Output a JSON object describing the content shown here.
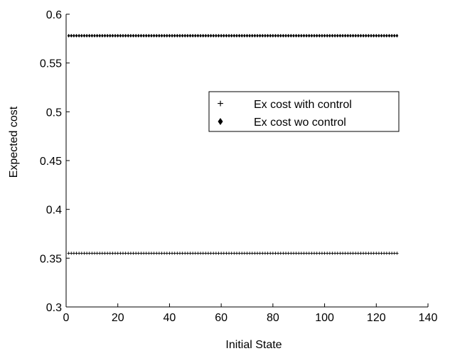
{
  "chart_data": {
    "type": "scatter",
    "xlabel": "Initial State",
    "ylabel": "Expected cost",
    "xlim": [
      0,
      140
    ],
    "ylim": [
      0.3,
      0.6
    ],
    "xticks": [
      0,
      20,
      40,
      60,
      80,
      100,
      120,
      140
    ],
    "xtick_labels": [
      "0",
      "20",
      "40",
      "60",
      "80",
      "100",
      "120",
      "140"
    ],
    "yticks": [
      0.3,
      0.35,
      0.4,
      0.45,
      0.5,
      0.55,
      0.6
    ],
    "ytick_labels": [
      "0.3",
      "0.35",
      "0.4",
      "0.45",
      "0.5",
      "0.55",
      "0.6"
    ],
    "grid": false,
    "legend_position": "center-right",
    "series": [
      {
        "name": "Ex cost with control",
        "marker": "plus",
        "color": "#000000",
        "x_start": 1,
        "x_end": 128,
        "x_step": 1,
        "y": 0.355
      },
      {
        "name": "Ex cost wo control",
        "marker": "diamond",
        "color": "#000000",
        "x_start": 1,
        "x_end": 128,
        "x_step": 1,
        "y": 0.578
      }
    ]
  }
}
